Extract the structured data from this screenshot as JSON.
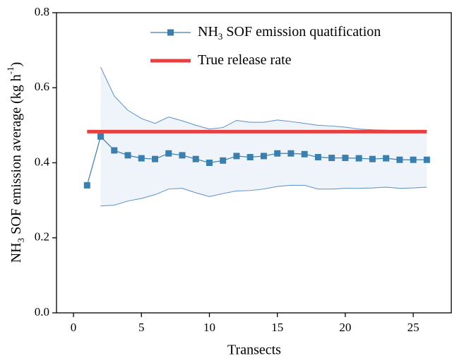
{
  "chart_data": {
    "type": "line",
    "xlabel": "Transects",
    "ylabel": [
      "NH",
      "3",
      " SOF emission average (kg h",
      "-1",
      ")"
    ],
    "xlim": [
      -1.25,
      27.8
    ],
    "ylim": [
      0,
      0.8
    ],
    "xticks": [
      0,
      5,
      10,
      15,
      20,
      25
    ],
    "yticks": [
      {
        "value": 0,
        "label": "0.0"
      },
      {
        "value": 0.2,
        "label": "0.2"
      },
      {
        "value": 0.4,
        "label": "0.4"
      },
      {
        "value": 0.6,
        "label": "0.6"
      },
      {
        "value": 0.8,
        "label": "0.8"
      }
    ],
    "series": [
      {
        "name": [
          "NH",
          "3",
          " SOF emission quatification"
        ],
        "color": "#3a7fae",
        "marker": "square",
        "x": [
          1,
          2,
          3,
          4,
          5,
          6,
          7,
          8,
          9,
          10,
          11,
          12,
          13,
          14,
          15,
          16,
          17,
          18,
          19,
          20,
          21,
          22,
          23,
          24,
          25,
          26
        ],
        "values": [
          0.34,
          0.47,
          0.433,
          0.42,
          0.412,
          0.41,
          0.425,
          0.42,
          0.41,
          0.4,
          0.406,
          0.418,
          0.415,
          0.418,
          0.425,
          0.425,
          0.423,
          0.415,
          0.413,
          0.413,
          0.412,
          0.41,
          0.412,
          0.408,
          0.408,
          0.408
        ]
      },
      {
        "name": [
          "True release rate"
        ],
        "color": "#e84040",
        "x": [
          1,
          26
        ],
        "values": [
          0.483,
          0.483
        ]
      }
    ],
    "band": {
      "color": "#5b8fc7",
      "x": [
        2,
        3,
        4,
        5,
        6,
        7,
        8,
        9,
        10,
        11,
        12,
        13,
        14,
        15,
        16,
        17,
        18,
        19,
        20,
        21,
        22,
        23,
        24,
        25,
        26
      ],
      "upper": [
        0.655,
        0.578,
        0.54,
        0.518,
        0.505,
        0.522,
        0.512,
        0.5,
        0.49,
        0.494,
        0.513,
        0.508,
        0.508,
        0.514,
        0.51,
        0.505,
        0.5,
        0.498,
        0.495,
        0.49,
        0.488,
        0.487,
        0.485,
        0.484,
        0.483
      ],
      "lower": [
        0.285,
        0.287,
        0.298,
        0.305,
        0.315,
        0.33,
        0.332,
        0.32,
        0.31,
        0.318,
        0.325,
        0.326,
        0.33,
        0.337,
        0.34,
        0.34,
        0.33,
        0.33,
        0.332,
        0.332,
        0.333,
        0.335,
        0.332,
        0.333,
        0.335
      ]
    }
  }
}
